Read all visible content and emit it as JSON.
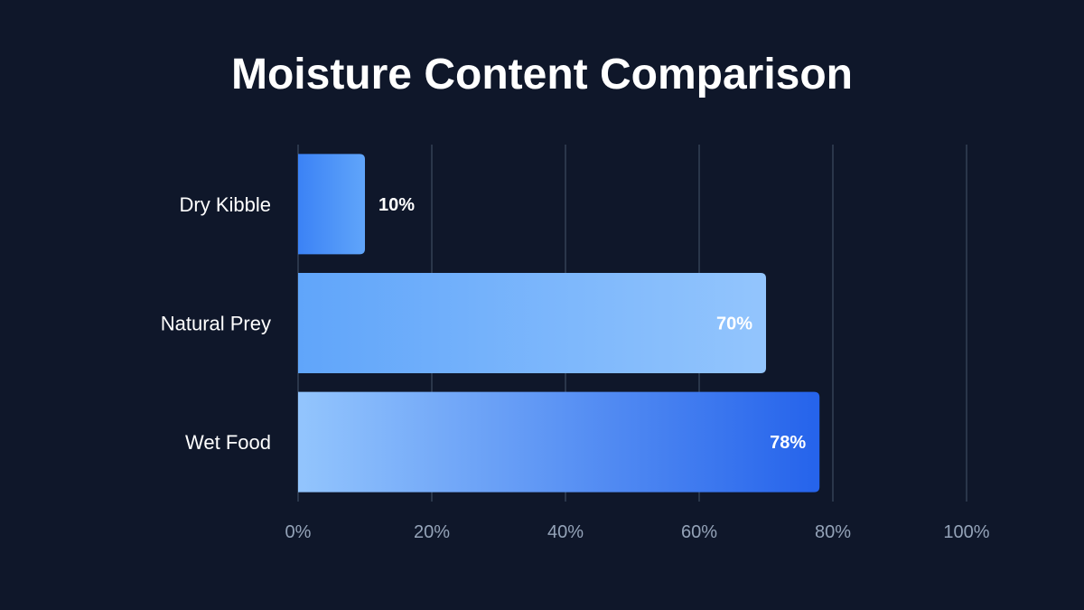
{
  "chart_data": {
    "type": "bar",
    "orientation": "horizontal",
    "title": "Moisture Content Comparison",
    "categories": [
      "Dry Kibble",
      "Natural Prey",
      "Wet Food"
    ],
    "values": [
      10,
      70,
      78
    ],
    "value_labels": [
      "10%",
      "70%",
      "78%"
    ],
    "xlim": [
      0,
      100
    ],
    "x_ticks": [
      0,
      20,
      40,
      60,
      80,
      100
    ],
    "x_tick_labels": [
      "0%",
      "20%",
      "40%",
      "60%",
      "80%",
      "100%"
    ],
    "xlabel": "",
    "ylabel": "",
    "grid": true,
    "legend": "none",
    "colors": {
      "background": "#0f172a",
      "grid": "#334155",
      "bar_gradients": [
        [
          "#3b82f6",
          "#60a5fa"
        ],
        [
          "#60a5fa",
          "#93c5fd"
        ],
        [
          "#93c5fd",
          "#2563eb"
        ]
      ]
    }
  }
}
